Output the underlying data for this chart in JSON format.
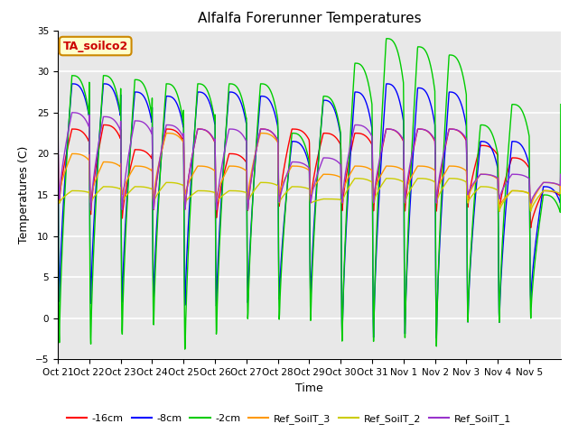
{
  "title": "Alfalfa Forerunner Temperatures",
  "ylabel": "Temperatures (C)",
  "xlabel": "Time",
  "ylim": [
    -5,
    35
  ],
  "fig_facecolor": "#ffffff",
  "plot_facecolor": "#e8e8e8",
  "series": {
    "-16cm": {
      "color": "#ff0000"
    },
    "-8cm": {
      "color": "#0000ff"
    },
    "-2cm": {
      "color": "#00cc00"
    },
    "Ref_SoilT_3": {
      "color": "#ff9900"
    },
    "Ref_SoilT_2": {
      "color": "#cccc00"
    },
    "Ref_SoilT_1": {
      "color": "#9933cc"
    }
  },
  "xtick_labels": [
    "Oct 21",
    "Oct 22",
    "Oct 23",
    "Oct 24",
    "Oct 25",
    "Oct 26",
    "Oct 27",
    "Oct 28",
    "Oct 29",
    "Oct 30",
    "Oct 31",
    "Nov 1",
    "Nov 2",
    "Nov 3",
    "Nov 4",
    "Nov 5"
  ],
  "annotation_text": "TA_soilco2",
  "annotation_color": "#cc0000",
  "annotation_bg": "#ffffcc",
  "annotation_border": "#cc8800",
  "grid_color": "#ffffff",
  "yticks": [
    -5,
    0,
    5,
    10,
    15,
    20,
    25,
    30,
    35
  ],
  "linewidth": 1.0,
  "n_days": 16,
  "pts_per_day": 100,
  "highs_2cm": [
    29.5,
    29.5,
    29.0,
    28.5,
    28.5,
    28.5,
    28.5,
    22.5,
    27.0,
    31.0,
    34.0,
    33.0,
    32.0,
    23.5,
    26.0,
    15.0
  ],
  "lows_2cm": [
    -3.0,
    -3.5,
    -2.5,
    -1.5,
    -4.5,
    -2.5,
    -0.5,
    -0.5,
    -0.5,
    -3.0,
    -3.0,
    -2.5,
    -3.5,
    -0.5,
    -0.5,
    0.0
  ],
  "highs_8cm": [
    28.5,
    28.5,
    27.5,
    27.0,
    27.5,
    27.5,
    27.0,
    21.5,
    26.5,
    27.5,
    28.5,
    28.0,
    27.5,
    21.5,
    21.5,
    16.0
  ],
  "lows_8cm": [
    2.0,
    1.5,
    1.5,
    2.0,
    1.0,
    1.0,
    1.5,
    2.0,
    2.0,
    -2.5,
    -2.5,
    -2.0,
    -2.5,
    -0.5,
    -0.5,
    2.0
  ],
  "highs_16cm": [
    23.0,
    23.5,
    20.5,
    23.0,
    23.0,
    20.0,
    23.0,
    23.0,
    22.5,
    22.5,
    23.0,
    23.0,
    23.0,
    21.0,
    19.5,
    15.5
  ],
  "lows_16cm": [
    14.0,
    12.5,
    12.0,
    13.0,
    13.0,
    12.0,
    13.0,
    13.5,
    14.0,
    13.0,
    13.0,
    13.0,
    13.0,
    13.5,
    13.0,
    11.0
  ],
  "highs_ref3": [
    20.0,
    19.0,
    18.5,
    22.5,
    18.5,
    18.5,
    22.5,
    18.5,
    17.5,
    18.5,
    18.5,
    18.5,
    18.5,
    17.5,
    15.5,
    16.5
  ],
  "lows_ref3": [
    15.0,
    14.5,
    15.0,
    14.5,
    15.0,
    14.5,
    14.5,
    15.0,
    15.0,
    15.0,
    15.0,
    15.0,
    15.0,
    14.5,
    13.5,
    13.5
  ],
  "highs_ref2": [
    15.5,
    16.0,
    16.0,
    16.5,
    15.5,
    15.5,
    16.5,
    16.0,
    14.5,
    17.0,
    17.0,
    17.0,
    17.0,
    16.0,
    15.5,
    15.5
  ],
  "lows_ref2": [
    14.0,
    14.0,
    14.0,
    14.0,
    14.0,
    14.0,
    14.0,
    14.0,
    14.0,
    14.0,
    14.0,
    14.0,
    14.0,
    14.0,
    13.0,
    13.0
  ],
  "highs_ref1": [
    25.0,
    24.5,
    24.0,
    23.5,
    23.0,
    23.0,
    23.0,
    19.0,
    19.5,
    23.5,
    23.0,
    23.0,
    23.0,
    17.5,
    17.5,
    16.5
  ],
  "lows_ref1": [
    14.5,
    13.0,
    13.0,
    13.0,
    13.0,
    13.0,
    13.0,
    14.0,
    14.0,
    14.0,
    14.0,
    14.0,
    14.0,
    15.0,
    14.5,
    14.0
  ]
}
